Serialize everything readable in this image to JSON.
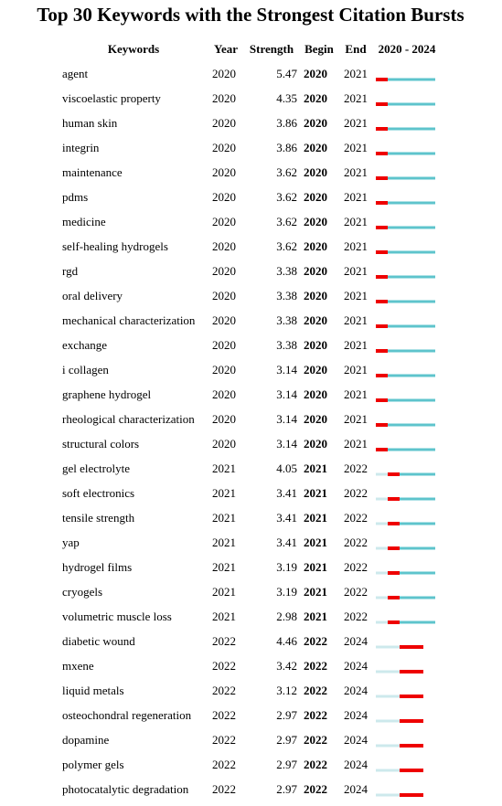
{
  "title": "Top 30 Keywords with the Strongest Citation Bursts",
  "table": {
    "header": [
      "Keywords",
      "Year",
      "Strength",
      "Begin",
      "End",
      "2020 - 2024"
    ],
    "rows": [
      [
        "agent",
        2020,
        5.47,
        2020,
        2021
      ],
      [
        "viscoelastic property",
        2020,
        4.35,
        2020,
        2021
      ],
      [
        "human skin",
        2020,
        3.86,
        2020,
        2021
      ],
      [
        "integrin",
        2020,
        3.86,
        2020,
        2021
      ],
      [
        "maintenance",
        2020,
        3.62,
        2020,
        2021
      ],
      [
        "pdms",
        2020,
        3.62,
        2020,
        2021
      ],
      [
        "medicine",
        2020,
        3.62,
        2020,
        2021
      ],
      [
        "self-healing hydrogels",
        2020,
        3.62,
        2020,
        2021
      ],
      [
        "rgd",
        2020,
        3.38,
        2020,
        2021
      ],
      [
        "oral delivery",
        2020,
        3.38,
        2020,
        2021
      ],
      [
        "mechanical characterization",
        2020,
        3.38,
        2020,
        2021
      ],
      [
        "exchange",
        2020,
        3.38,
        2020,
        2021
      ],
      [
        "i collagen",
        2020,
        3.14,
        2020,
        2021
      ],
      [
        "graphene hydrogel",
        2020,
        3.14,
        2020,
        2021
      ],
      [
        "rheological characterization",
        2020,
        3.14,
        2020,
        2021
      ],
      [
        "structural colors",
        2020,
        3.14,
        2020,
        2021
      ],
      [
        "gel electrolyte",
        2021,
        4.05,
        2021,
        2022
      ],
      [
        "soft electronics",
        2021,
        3.41,
        2021,
        2022
      ],
      [
        "tensile strength",
        2021,
        3.41,
        2021,
        2022
      ],
      [
        "yap",
        2021,
        3.41,
        2021,
        2022
      ],
      [
        "hydrogel films",
        2021,
        3.19,
        2021,
        2022
      ],
      [
        "cryogels",
        2021,
        3.19,
        2021,
        2022
      ],
      [
        "volumetric muscle loss",
        2021,
        2.98,
        2021,
        2022
      ],
      [
        "diabetic wound",
        2022,
        4.46,
        2022,
        2024
      ],
      [
        "mxene",
        2022,
        3.42,
        2022,
        2024
      ],
      [
        "liquid metals",
        2022,
        3.12,
        2022,
        2024
      ],
      [
        "osteochondral regeneration",
        2022,
        2.97,
        2022,
        2024
      ],
      [
        "dopamine",
        2022,
        2.97,
        2022,
        2024
      ],
      [
        "polymer gels",
        2022,
        2.97,
        2022,
        2024
      ],
      [
        "photocatalytic degradation",
        2022,
        2.97,
        2022,
        2024
      ]
    ]
  }
}
